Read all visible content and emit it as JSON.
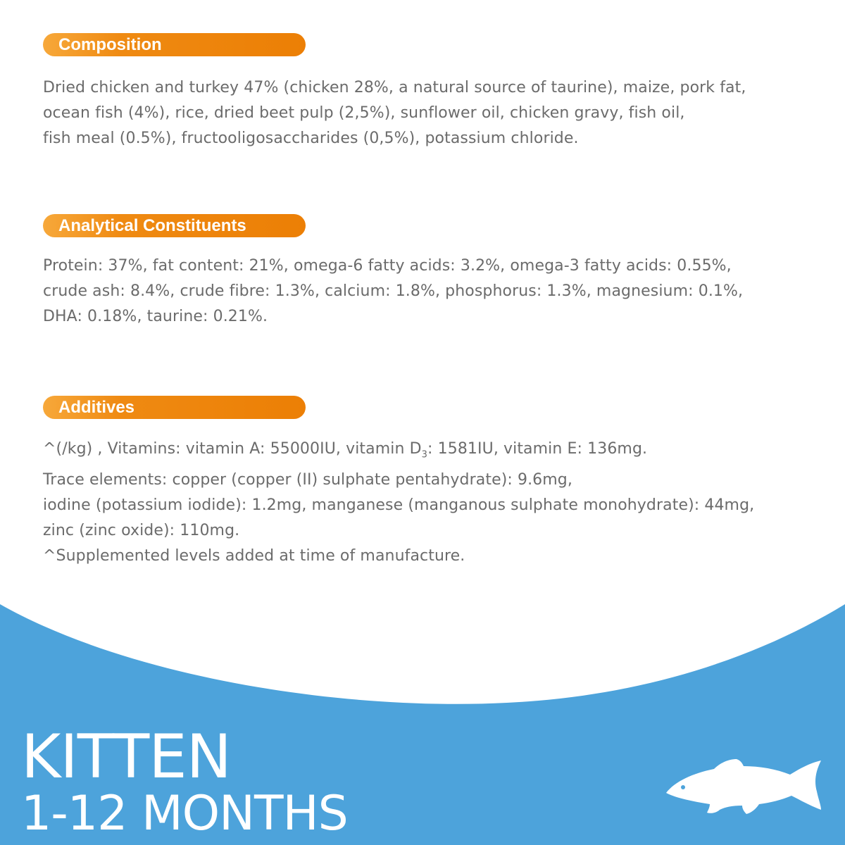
{
  "colors": {
    "accent_orange": "#ec7f05",
    "band_blue": "#4da3db",
    "body_text": "#6b6b6b",
    "white": "#ffffff"
  },
  "composition": {
    "heading": "Composition",
    "lines": [
      "Dried chicken and turkey 47% (chicken 28%, a natural source of taurine), maize, pork fat,",
      "ocean fish (4%), rice, dried beet pulp (2,5%), sunflower oil, chicken gravy, fish oil,",
      "fish meal (0.5%), fructooligosaccharides (0,5%), potassium chloride."
    ]
  },
  "analytical": {
    "heading": "Analytical Constituents",
    "lines": [
      "Protein: 37%, fat content: 21%, omega-6 fatty acids: 3.2%, omega-3 fatty acids: 0.55%,",
      "crude ash: 8.4%, crude fibre: 1.3%, calcium: 1.8%, phosphorus: 1.3%, magnesium: 0.1%,",
      "DHA: 0.18%, taurine: 0.21%."
    ]
  },
  "additives": {
    "heading": "Additives",
    "line1_before": "^(/kg) , Vitamins: vitamin A: 55000IU, vitamin D",
    "line1_subscript": "3",
    "line1_after": ": 1581IU, vitamin E: 136mg.",
    "lines": [
      "Trace elements: copper (copper (II) sulphate pentahydrate): 9.6mg,",
      "iodine (potassium iodide): 1.2mg, manganese (manganous sulphate monohydrate): 44mg,",
      "zinc (zinc oxide): 110mg.",
      "^Supplemented levels added at time of manufacture."
    ]
  },
  "hero": {
    "title": "KITTEN",
    "subtitle": "1-12 MONTHS",
    "icon": "fish-icon"
  }
}
